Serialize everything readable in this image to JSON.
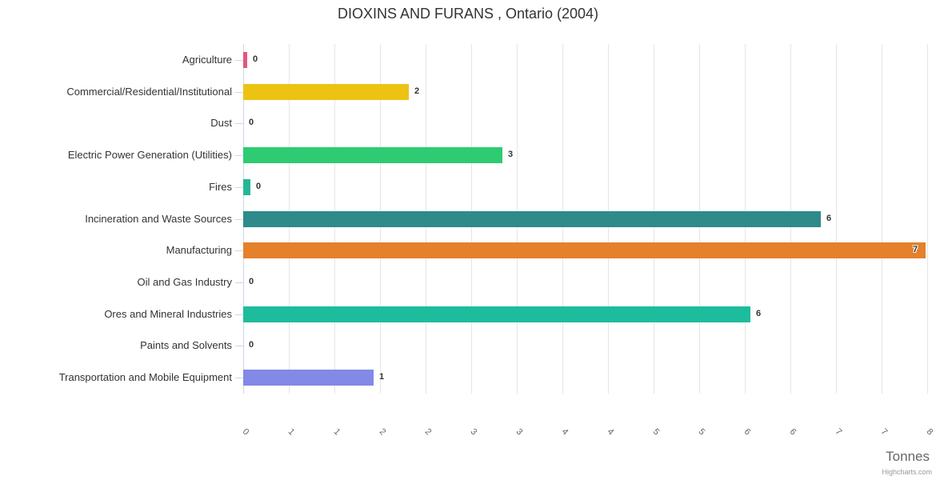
{
  "chart_data": {
    "type": "bar",
    "orientation": "horizontal",
    "title": "DIOXINS AND FURANS , Ontario (2004)",
    "xlabel": "Tonnes",
    "credit": "Highcharts.com",
    "legend": "none",
    "grid": true,
    "xlim": [
      0,
      8
    ],
    "tick_interval": 0.5,
    "tick_labels": [
      "0",
      "1",
      "1",
      "2",
      "2",
      "3",
      "3",
      "4",
      "4",
      "5",
      "5",
      "6",
      "6",
      "7",
      "7",
      "8"
    ],
    "axis_color": "#ccd6eb",
    "grid_color": "#e6e6e6",
    "categories": [
      "Agriculture",
      "Commercial/Residential/Institutional",
      "Dust",
      "Electric Power Generation (Utilities)",
      "Fires",
      "Incineration and Waste Sources",
      "Manufacturing",
      "Oil and Gas Industry",
      "Ores and Mineral Industries",
      "Paints and Solvents",
      "Transportation and Mobile Equipment"
    ],
    "points": [
      {
        "category": "Agriculture",
        "value": 0.04,
        "label": "0",
        "color": "#e4567d"
      },
      {
        "category": "Commercial/Residential/Institutional",
        "value": 1.82,
        "label": "2",
        "color": "#edc213"
      },
      {
        "category": "Dust",
        "value": 0,
        "label": "0",
        "color": null
      },
      {
        "category": "Electric Power Generation (Utilities)",
        "value": 2.84,
        "label": "3",
        "color": "#2ecb72"
      },
      {
        "category": "Fires",
        "value": 0.08,
        "label": "0",
        "color": "#26b696"
      },
      {
        "category": "Incineration and Waste Sources",
        "value": 6.33,
        "label": "6",
        "color": "#2e8b89"
      },
      {
        "category": "Manufacturing",
        "value": 7.48,
        "label": "7",
        "color": "#e5802b"
      },
      {
        "category": "Oil and Gas Industry",
        "value": 0,
        "label": "0",
        "color": null
      },
      {
        "category": "Ores and Mineral Industries",
        "value": 5.56,
        "label": "6",
        "color": "#1dbc9c"
      },
      {
        "category": "Paints and Solvents",
        "value": 0,
        "label": "0",
        "color": null
      },
      {
        "category": "Transportation and Mobile Equipment",
        "value": 1.43,
        "label": "1",
        "color": "#8289e6"
      }
    ]
  }
}
